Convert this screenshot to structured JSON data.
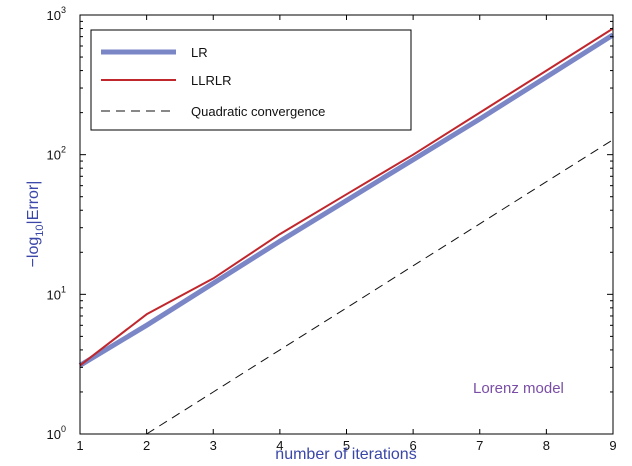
{
  "chart_data": {
    "type": "line",
    "xlabel": "number of iterations",
    "ylabel": "−log₁₀|Error|",
    "ylabel_parts": {
      "pre": "−log",
      "sub": "10",
      "post": "|Error|"
    },
    "xlim": [
      1,
      9
    ],
    "ylim": [
      1,
      1000
    ],
    "yscale": "log",
    "x_ticks": [
      1,
      2,
      3,
      4,
      5,
      6,
      7,
      8,
      9
    ],
    "y_ticks": [
      {
        "base": "10",
        "exp": "0",
        "value": 1
      },
      {
        "base": "10",
        "exp": "1",
        "value": 10
      },
      {
        "base": "10",
        "exp": "2",
        "value": 100
      },
      {
        "base": "10",
        "exp": "3",
        "value": 1000
      }
    ],
    "grid": false,
    "legend_position": "top-left",
    "annotation": "Lorenz model",
    "series": [
      {
        "name": "LR",
        "color": "#7b86c6",
        "style": "solid-thick",
        "x": [
          1,
          2,
          3,
          4,
          5,
          6,
          7,
          8,
          9
        ],
        "y": [
          3.1,
          6.0,
          12,
          24,
          47,
          92,
          180,
          360,
          720
        ]
      },
      {
        "name": "LLRLR",
        "color": "#c0272d",
        "style": "solid",
        "x": [
          1,
          2,
          3,
          4,
          5,
          6,
          7,
          8,
          9
        ],
        "y": [
          3.1,
          7.2,
          13,
          27,
          52,
          100,
          200,
          400,
          800
        ]
      },
      {
        "name": "Quadratic convergence",
        "color": "#111111",
        "style": "dashed",
        "x": [
          2,
          3,
          4,
          5,
          6,
          7,
          8,
          9
        ],
        "y": [
          1.0,
          2.0,
          4.0,
          8.0,
          16,
          32,
          64,
          128
        ]
      }
    ]
  },
  "colors": {
    "axis_title": "#3a46a8",
    "annotation": "#7a4ea6"
  }
}
